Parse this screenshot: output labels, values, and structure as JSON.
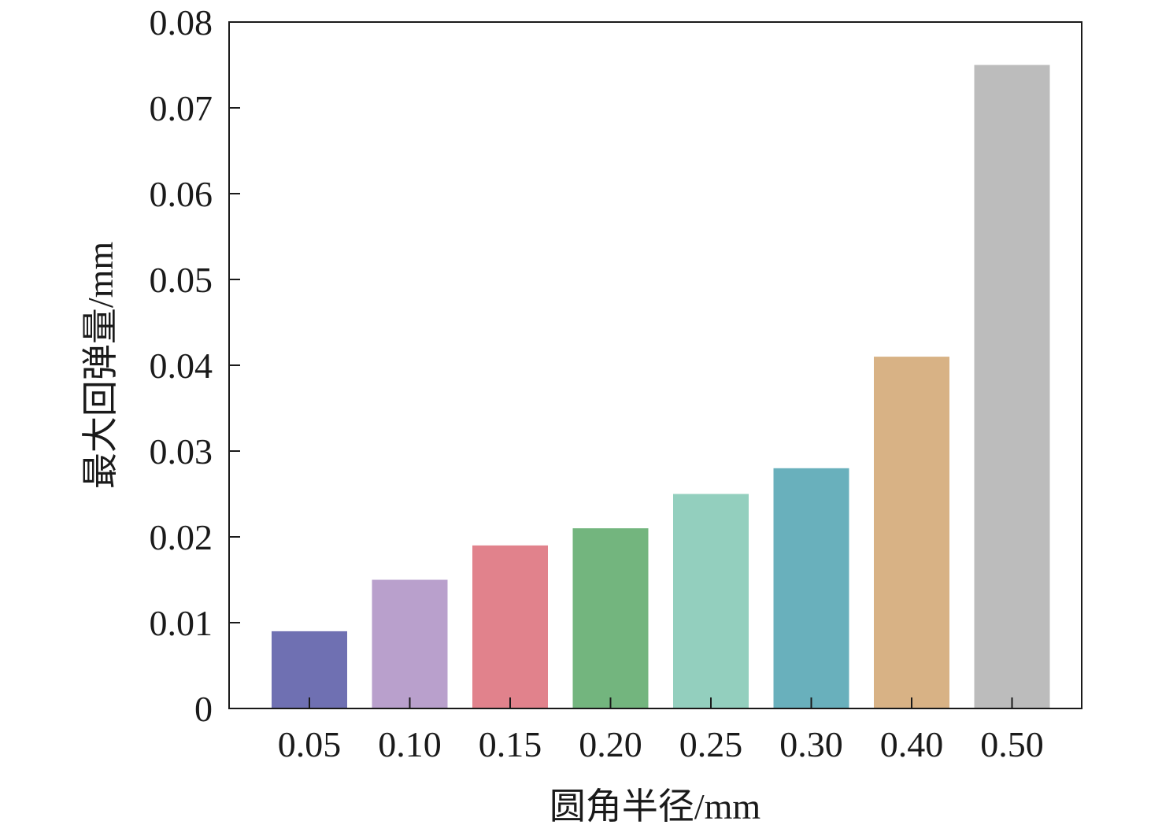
{
  "chart_data": {
    "type": "bar",
    "title": "",
    "xlabel": "圆角半径/mm",
    "ylabel": "最大回弹量/mm",
    "categories": [
      "0.05",
      "0.10",
      "0.15",
      "0.20",
      "0.25",
      "0.30",
      "0.40",
      "0.50"
    ],
    "values": [
      0.009,
      0.015,
      0.019,
      0.021,
      0.025,
      0.028,
      0.041,
      0.075
    ],
    "colors": [
      "#6f70b2",
      "#b9a0cc",
      "#e1828c",
      "#73b57e",
      "#93cfbe",
      "#69b0bc",
      "#d8b285",
      "#bcbcbc"
    ],
    "ylim": [
      0,
      0.08
    ],
    "yticks": [
      "0",
      "0.01",
      "0.02",
      "0.03",
      "0.04",
      "0.05",
      "0.06",
      "0.07",
      "0.08"
    ],
    "grid": false,
    "legend": "none"
  }
}
